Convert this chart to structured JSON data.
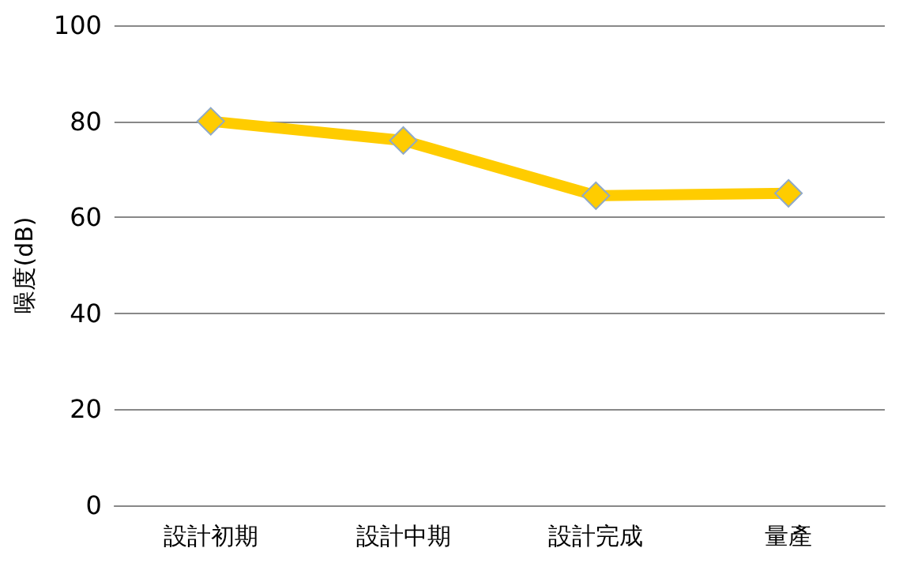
{
  "chart_data": {
    "type": "line",
    "ylabel": "噪度(dB)",
    "categories": [
      "設計初期",
      "設計中期",
      "設計完成",
      "量產"
    ],
    "series": [
      {
        "color": "#ffcc00",
        "values": [
          80,
          76,
          64.5,
          65
        ]
      }
    ],
    "ylim": [
      0,
      100
    ],
    "yticks": [
      0,
      20,
      40,
      60,
      80,
      100
    ],
    "grid": "y",
    "marker": "diamond",
    "line_style": "solid"
  }
}
